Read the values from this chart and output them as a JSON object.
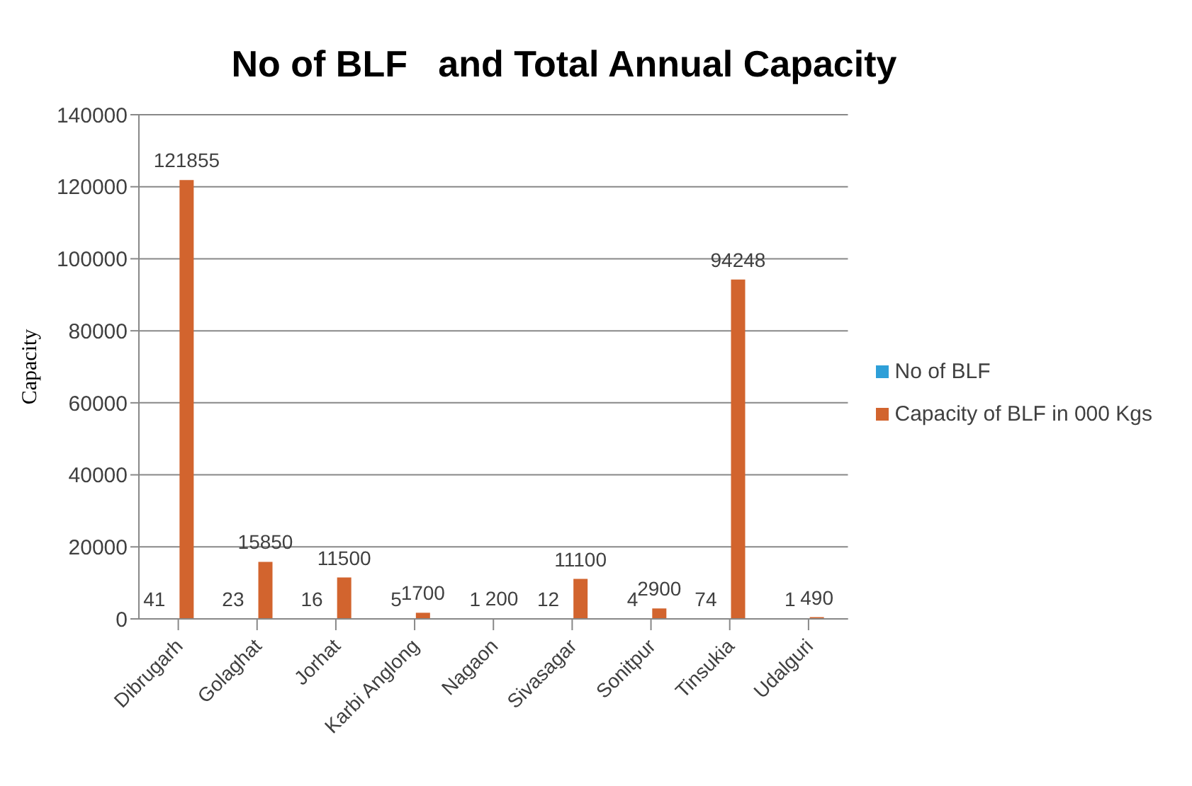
{
  "chart_data": {
    "type": "bar",
    "title": "No of BLF   and Total Annual Capacity",
    "ylabel": "Capacity",
    "categories": [
      "Dibrugarh",
      "Golaghat",
      "Jorhat",
      "Karbi Anglong",
      "Nagaon",
      "Sivasagar",
      "Sonitpur",
      "Tinsukia",
      "Udalguri"
    ],
    "series": [
      {
        "name": "No of BLF",
        "color": "#2e9fd8",
        "values": [
          41,
          23,
          16,
          5,
          1,
          12,
          4,
          74,
          1
        ]
      },
      {
        "name": "Capacity of BLF in 000 Kgs",
        "color": "#d2642e",
        "values": [
          121855,
          15850,
          11500,
          1700,
          200,
          11100,
          2900,
          94248,
          490
        ]
      }
    ],
    "ylim": [
      0,
      140000
    ],
    "yticks": [
      0,
      20000,
      40000,
      60000,
      80000,
      100000,
      120000,
      140000
    ],
    "grid": "y",
    "legend": "right",
    "data_labels": true
  }
}
